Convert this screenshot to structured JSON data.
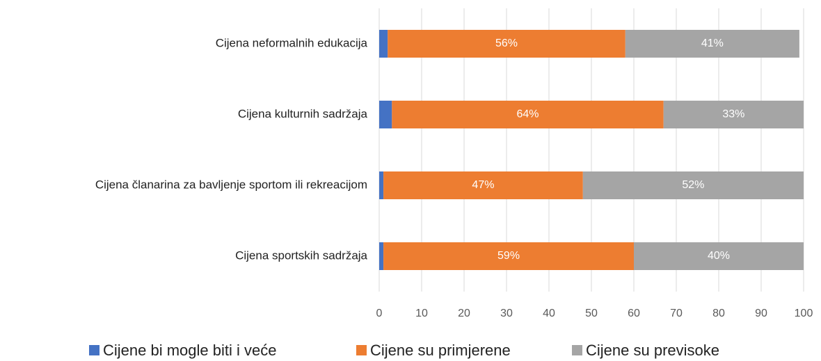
{
  "chart_data": {
    "type": "stacked_barh",
    "categories": [
      "Cijena neformalnih edukacija",
      "Cijena kulturnih sadržaja",
      "Cijena članarina za bavljenje sportom ili rekreacijom",
      "Cijena sportskih sadržaja"
    ],
    "series": [
      {
        "name": "Cijene bi mogle biti i veće",
        "color": "#4472c4",
        "values": [
          2,
          3,
          1,
          1
        ]
      },
      {
        "name": "Cijene su primjerene",
        "color": "#ed7d31",
        "values": [
          56,
          64,
          47,
          59
        ],
        "value_labels": [
          "56%",
          "64%",
          "47%",
          "59%"
        ]
      },
      {
        "name": "Cijene su previsoke",
        "color": "#a5a5a5",
        "values": [
          41,
          33,
          52,
          40
        ],
        "value_labels": [
          "41%",
          "33%",
          "52%",
          "40%"
        ]
      }
    ],
    "xlim": [
      0,
      100
    ],
    "xticks": [
      0,
      10,
      20,
      30,
      40,
      50,
      60,
      70,
      80,
      90,
      100
    ],
    "grid": true,
    "legend": "bottom"
  }
}
